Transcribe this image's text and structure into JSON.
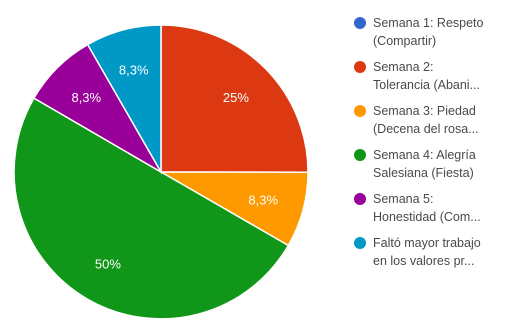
{
  "chart_data": {
    "type": "pie",
    "title": "",
    "legend_position": "right",
    "slices": [
      {
        "label_lines": [
          "Semana 1: Respeto",
          "(Compartir)"
        ],
        "value": 0,
        "display": "",
        "color": "#3366cc"
      },
      {
        "label_lines": [
          "Semana 2:",
          "Tolerancia (Abani..."
        ],
        "value": 25,
        "display": "25%",
        "color": "#dc3912"
      },
      {
        "label_lines": [
          "Semana 3: Piedad",
          "(Decena del rosa..."
        ],
        "value": 8.3,
        "display": "8,3%",
        "color": "#ff9900"
      },
      {
        "label_lines": [
          "Semana 4: Alegría",
          "Salesiana (Fiesta)"
        ],
        "value": 50,
        "display": "50%",
        "color": "#109618"
      },
      {
        "label_lines": [
          "Semana 5:",
          "Honestidad (Com..."
        ],
        "value": 8.3,
        "display": "8,3%",
        "color": "#990099"
      },
      {
        "label_lines": [
          "Faltó mayor trabajo",
          "en los valores pr..."
        ],
        "value": 8.3,
        "display": "8,3%",
        "color": "#0099c6"
      }
    ]
  }
}
